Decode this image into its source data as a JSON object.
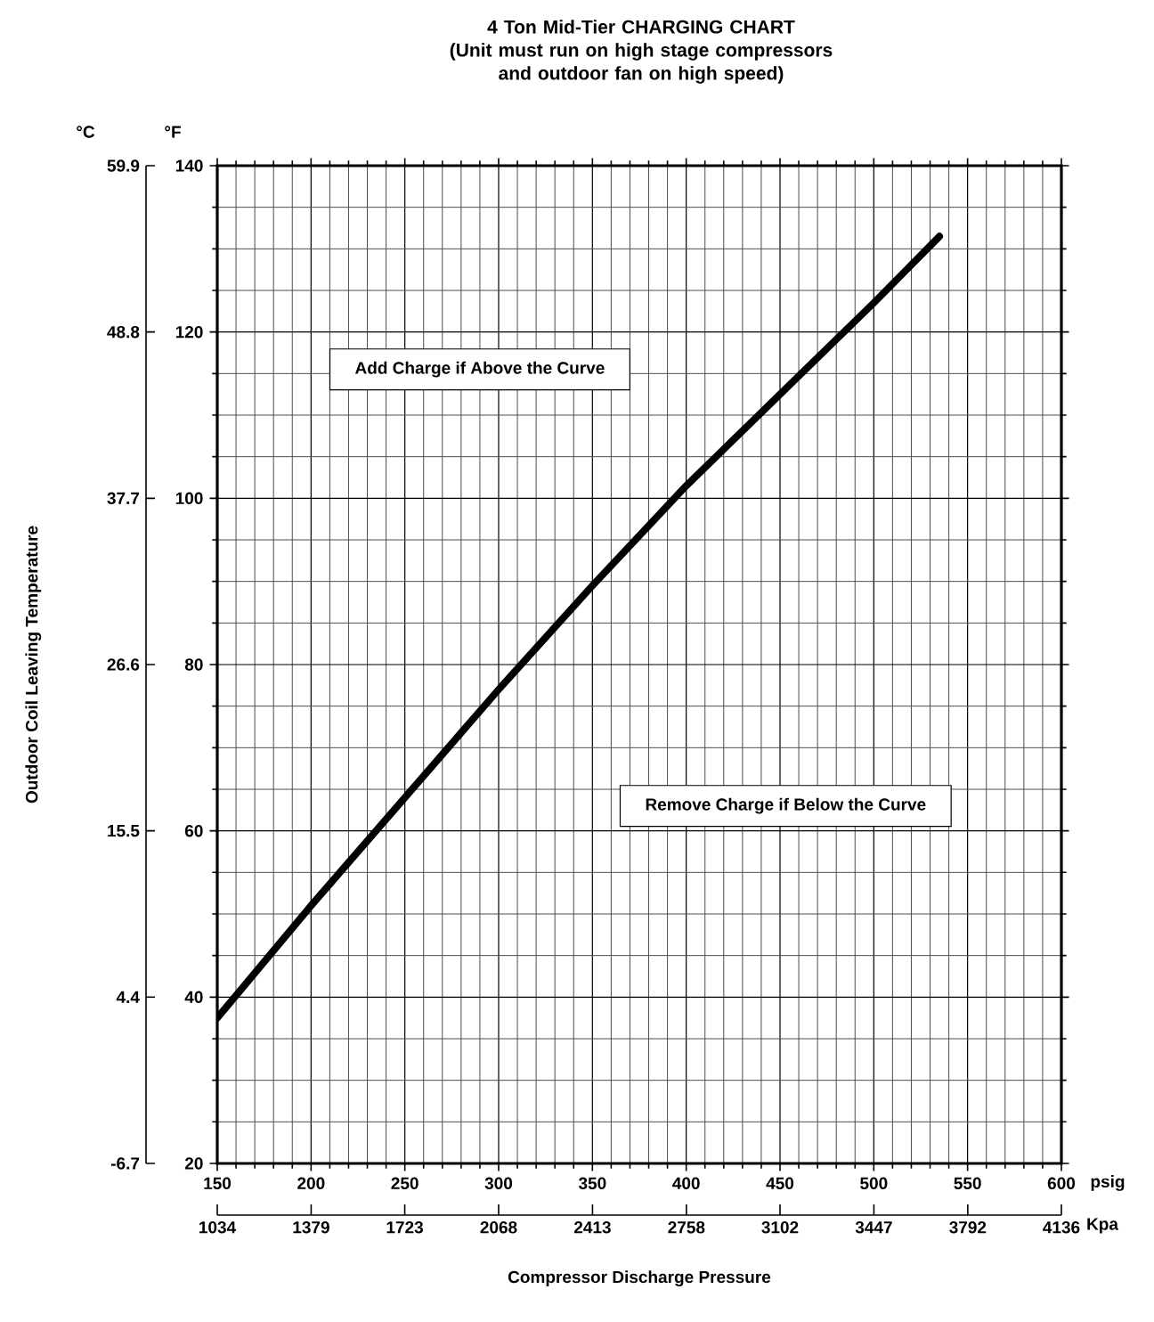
{
  "chart_data": {
    "type": "line",
    "title": "4 Ton Mid-Tier CHARGING CHART",
    "subtitle": "(Unit must run on high stage compressors and outdoor fan on high speed)",
    "xlabel": "Compressor Discharge Pressure",
    "y2label": "Outdoor Coil Leaving Temperature",
    "x": [
      150,
      200,
      250,
      300,
      350,
      400,
      450,
      500,
      535
    ],
    "series": [
      {
        "color": "#000000",
        "values": [
          37.5,
          51,
          64,
          77,
          89.5,
          101.5,
          112.5,
          123.5,
          131.5
        ]
      }
    ],
    "xlim": [
      150,
      600
    ],
    "xticks": [
      150,
      200,
      250,
      300,
      350,
      400,
      450,
      500,
      550,
      600
    ],
    "ylim": [
      20,
      140
    ],
    "yticks": [
      20,
      40,
      60,
      80,
      100,
      120,
      140
    ],
    "x2lim": [
      1034,
      4136
    ],
    "x2ticks": [
      1034,
      1379,
      1723,
      2068,
      2413,
      2758,
      3102,
      3447,
      3792,
      4136
    ],
    "y2lim": [
      -6.7,
      59.9
    ],
    "y2ticks": [
      -6.7,
      4.4,
      15.5,
      26.6,
      37.7,
      48.8,
      59.9
    ],
    "annotations": [
      "Add Charge if Above the Curve",
      "Remove Charge if Below the Curve",
      "°C",
      "°F",
      "psig",
      "Kpa"
    ],
    "grid": true,
    "marker": "none",
    "line_style": "solid"
  }
}
